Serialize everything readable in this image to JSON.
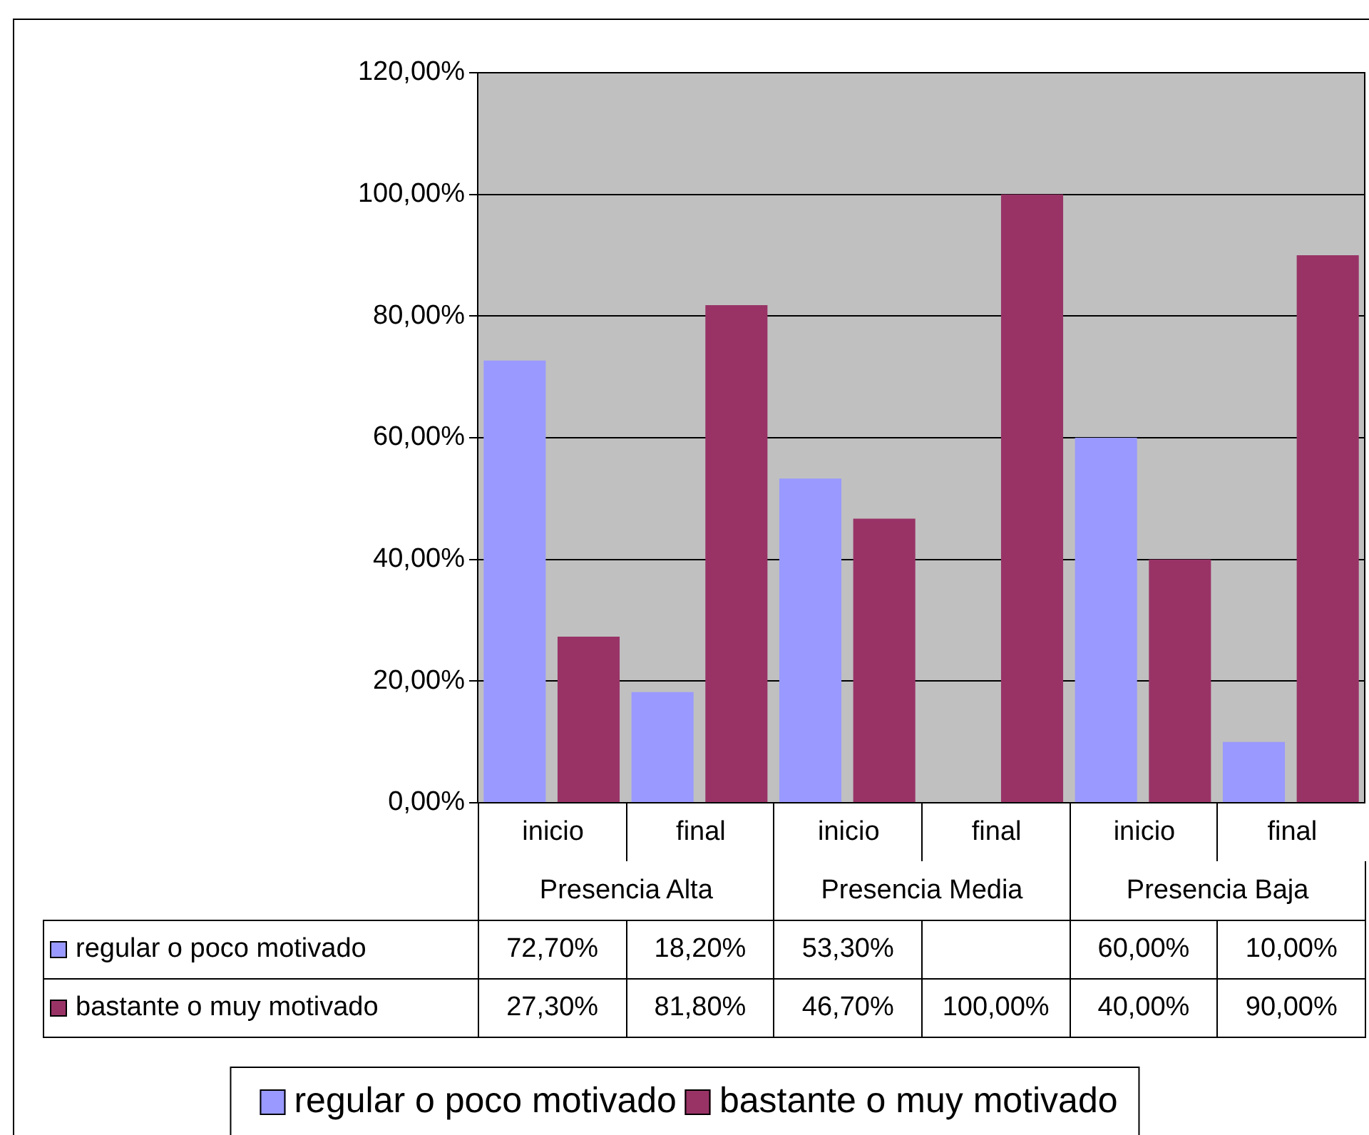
{
  "chart_data": {
    "type": "bar",
    "categories": [
      "inicio",
      "final",
      "inicio",
      "final",
      "inicio",
      "final"
    ],
    "annotations": [
      "Presencia Alta",
      "Presencia Media",
      "Presencia Baja"
    ],
    "series": [
      {
        "name": "regular o poco motivado",
        "color": "#9999ff",
        "values": [
          72.7,
          18.2,
          53.3,
          null,
          60.0,
          10.0
        ],
        "value_labels": [
          "72,70%",
          "18,20%",
          "53,30%",
          null,
          "60,00%",
          "10,00%"
        ]
      },
      {
        "name": "bastante o muy motivado",
        "color": "#993366",
        "values": [
          27.3,
          81.8,
          46.7,
          100.0,
          40.0,
          90.0
        ],
        "value_labels": [
          "27,30%",
          "81,80%",
          "46,70%",
          "100,00%",
          "40,00%",
          "90,00%"
        ]
      }
    ],
    "ylim": [
      0,
      120
    ],
    "yticks": [
      {
        "value": 0,
        "label": "0,00%"
      },
      {
        "value": 20,
        "label": "20,00%"
      },
      {
        "value": 40,
        "label": "40,00%"
      },
      {
        "value": 60,
        "label": "60,00%"
      },
      {
        "value": 80,
        "label": "80,00%"
      },
      {
        "value": 100,
        "label": "100,00%"
      },
      {
        "value": 120,
        "label": "120,00%"
      }
    ],
    "grid": "y",
    "legend": "bottom",
    "data_labels": true
  }
}
